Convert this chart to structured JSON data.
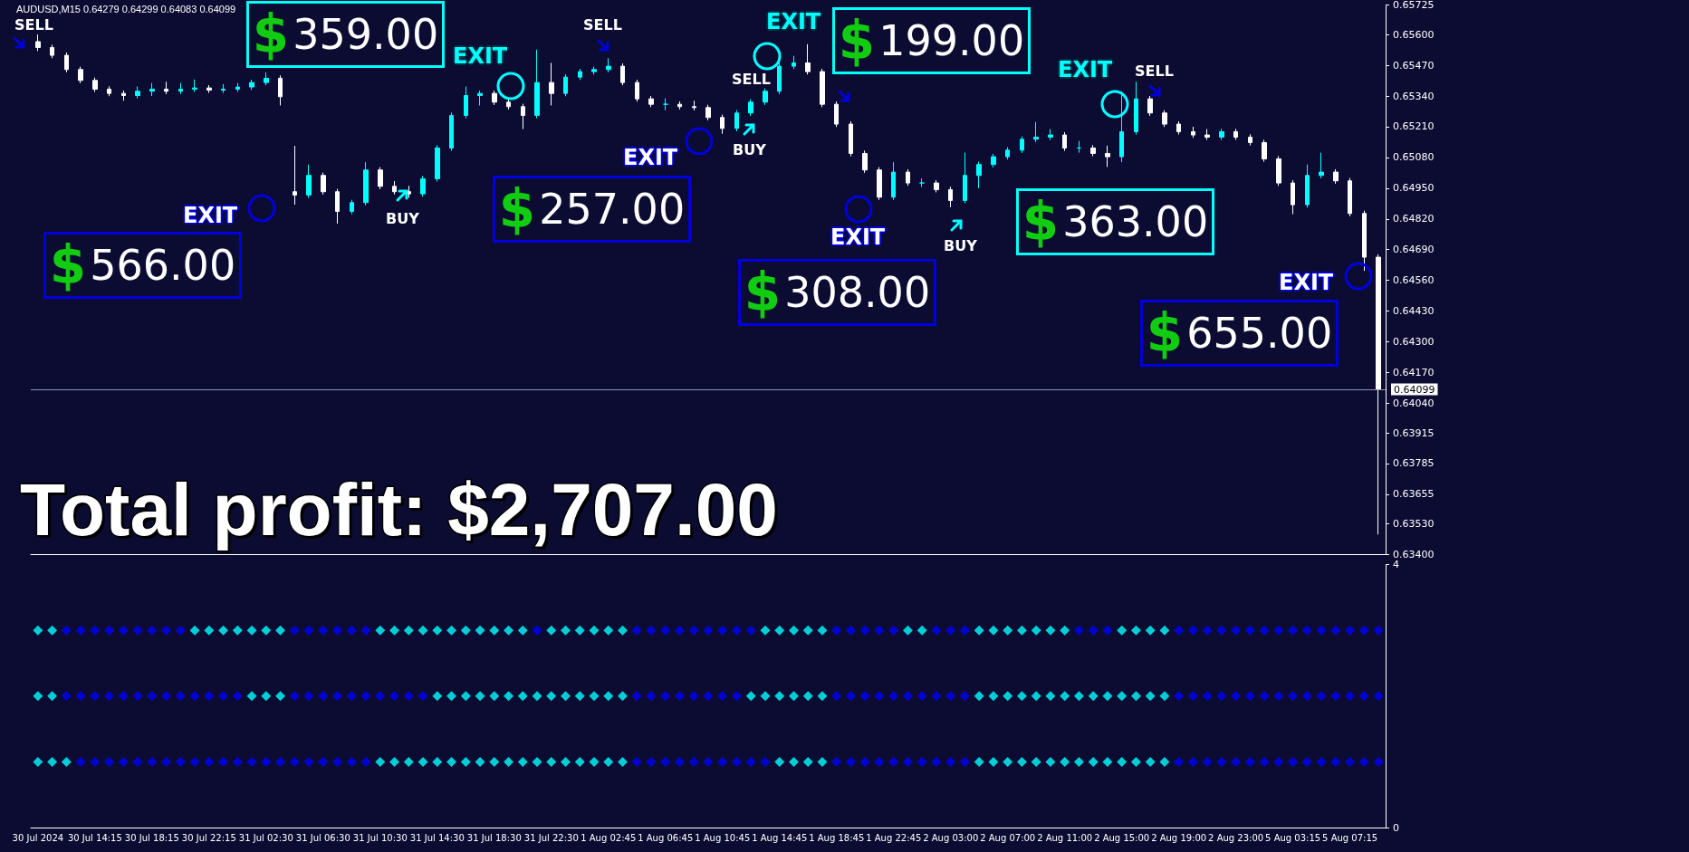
{
  "chart_data": [
    {
      "type": "candlestick",
      "tick_labels": "y",
      "categories": [
        null,
        null,
        null,
        null,
        null,
        null,
        null,
        null,
        null,
        null,
        null,
        null,
        null,
        null,
        null,
        null,
        null,
        null,
        null,
        null,
        null,
        null,
        null,
        null,
        null,
        null,
        null,
        null,
        null,
        null,
        null,
        null,
        null,
        null,
        null,
        null,
        null,
        null,
        null,
        null,
        null,
        null,
        null,
        null,
        null,
        null,
        null,
        null,
        null,
        null,
        null,
        null,
        null,
        null,
        null,
        null,
        null,
        null,
        null,
        null,
        null,
        null,
        null,
        null,
        null,
        null,
        null,
        null,
        null,
        null,
        null,
        null,
        null,
        null,
        null,
        null,
        null,
        null,
        null,
        null,
        null,
        null,
        null,
        null,
        null,
        null,
        null,
        null,
        null,
        null,
        null,
        null,
        null,
        null,
        null
      ],
      "ohlc": [
        [
          0.6557,
          0.656,
          0.6553,
          0.65545
        ],
        [
          0.65545,
          0.65557,
          0.655,
          0.65512
        ],
        [
          0.65512,
          0.65524,
          0.6544,
          0.65452
        ],
        [
          0.65452,
          0.65464,
          0.65394,
          0.65406
        ],
        [
          0.65406,
          0.65418,
          0.65357,
          0.65369
        ],
        [
          0.65369,
          0.65381,
          0.65339,
          0.65351
        ],
        [
          0.65351,
          0.65363,
          0.6532,
          0.65342
        ],
        [
          0.65342,
          0.6538,
          0.6533,
          0.6536
        ],
        [
          0.6536,
          0.65395,
          0.6534,
          0.65369
        ],
        [
          0.65369,
          0.654,
          0.65348,
          0.6536
        ],
        [
          0.6536,
          0.65395,
          0.65348,
          0.65369
        ],
        [
          0.65369,
          0.6541,
          0.65357,
          0.65374
        ],
        [
          0.65374,
          0.65386,
          0.65353,
          0.65365
        ],
        [
          0.65365,
          0.6539,
          0.65353,
          0.65369
        ],
        [
          0.65369,
          0.65395,
          0.65357,
          0.65378
        ],
        [
          0.65378,
          0.65409,
          0.65366,
          0.65397
        ],
        [
          0.65397,
          0.6544,
          0.65385,
          0.65415
        ],
        [
          0.65415,
          0.65427,
          0.653,
          0.65337
        ],
        [
          0.64935,
          0.65129,
          0.6488,
          0.64921
        ],
        [
          0.64921,
          0.6505,
          0.64909,
          0.65004
        ],
        [
          0.65004,
          0.65016,
          0.64923,
          0.64935
        ],
        [
          0.64935,
          0.64947,
          0.648,
          0.64852
        ],
        [
          0.64852,
          0.64901,
          0.6484,
          0.64889
        ],
        [
          0.64889,
          0.6506,
          0.64877,
          0.65027
        ],
        [
          0.65027,
          0.65039,
          0.64946,
          0.64958
        ],
        [
          0.64958,
          0.6498,
          0.64923,
          0.64935
        ],
        [
          0.64935,
          0.6496,
          0.6491,
          0.64926
        ],
        [
          0.64926,
          0.65002,
          0.64914,
          0.6499
        ],
        [
          0.6499,
          0.65132,
          0.64978,
          0.6512
        ],
        [
          0.6512,
          0.6527,
          0.65108,
          0.65258
        ],
        [
          0.65258,
          0.6538,
          0.65246,
          0.65342
        ],
        [
          0.65342,
          0.65363,
          0.653,
          0.65351
        ],
        [
          0.65351,
          0.65363,
          0.65302,
          0.65314
        ],
        [
          0.65314,
          0.65326,
          0.65283,
          0.65295
        ],
        [
          0.65295,
          0.65307,
          0.652,
          0.65258
        ],
        [
          0.65258,
          0.65536,
          0.65246,
          0.65397
        ],
        [
          0.65397,
          0.6548,
          0.653,
          0.65351
        ],
        [
          0.65351,
          0.65432,
          0.65339,
          0.6542
        ],
        [
          0.6542,
          0.65455,
          0.65408,
          0.65443
        ],
        [
          0.65443,
          0.65464,
          0.65431,
          0.65452
        ],
        [
          0.65452,
          0.655,
          0.6544,
          0.65466
        ],
        [
          0.65466,
          0.65478,
          0.65385,
          0.65397
        ],
        [
          0.65397,
          0.65409,
          0.65316,
          0.65328
        ],
        [
          0.65328,
          0.6534,
          0.65293,
          0.65305
        ],
        [
          0.65305,
          0.6533,
          0.6528,
          0.65305
        ],
        [
          0.65305,
          0.65317,
          0.65283,
          0.65295
        ],
        [
          0.65295,
          0.6532,
          0.65279,
          0.65291
        ],
        [
          0.65291,
          0.65303,
          0.65237,
          0.65249
        ],
        [
          0.65249,
          0.65261,
          0.6518,
          0.65203
        ],
        [
          0.65203,
          0.6528,
          0.65191,
          0.65268
        ],
        [
          0.65268,
          0.65326,
          0.65256,
          0.65314
        ],
        [
          0.65314,
          0.65372,
          0.65302,
          0.6536
        ],
        [
          0.6536,
          0.655,
          0.65348,
          0.65466
        ],
        [
          0.65466,
          0.6551,
          0.65454,
          0.6548
        ],
        [
          0.6548,
          0.65559,
          0.65431,
          0.65443
        ],
        [
          0.65443,
          0.65455,
          0.65293,
          0.65305
        ],
        [
          0.65305,
          0.65317,
          0.65209,
          0.65221
        ],
        [
          0.65221,
          0.65233,
          0.65085,
          0.65097
        ],
        [
          0.65097,
          0.65109,
          0.65015,
          0.65027
        ],
        [
          0.65027,
          0.65039,
          0.649,
          0.64912
        ],
        [
          0.64912,
          0.6506,
          0.649,
          0.65018
        ],
        [
          0.65018,
          0.6503,
          0.6496,
          0.64972
        ],
        [
          0.64972,
          0.6499,
          0.64955,
          0.64972
        ],
        [
          0.64972,
          0.64984,
          0.64932,
          0.64944
        ],
        [
          0.64944,
          0.64956,
          0.6487,
          0.64898
        ],
        [
          0.64898,
          0.651,
          0.64886,
          0.65004
        ],
        [
          0.65004,
          0.65062,
          0.6495,
          0.6505
        ],
        [
          0.6505,
          0.65095,
          0.65038,
          0.65083
        ],
        [
          0.65083,
          0.65123,
          0.65071,
          0.65111
        ],
        [
          0.65111,
          0.65169,
          0.65099,
          0.65157
        ],
        [
          0.65157,
          0.6523,
          0.65145,
          0.65166
        ],
        [
          0.65166,
          0.652,
          0.65154,
          0.65175
        ],
        [
          0.65175,
          0.65187,
          0.65108,
          0.6512
        ],
        [
          0.6512,
          0.6515,
          0.651,
          0.6512
        ],
        [
          0.6512,
          0.65132,
          0.65085,
          0.65097
        ],
        [
          0.65097,
          0.6513,
          0.6504,
          0.65083
        ],
        [
          0.65083,
          0.6536,
          0.6506,
          0.65189
        ],
        [
          0.65189,
          0.654,
          0.65177,
          0.65328
        ],
        [
          0.65328,
          0.6534,
          0.65256,
          0.65268
        ],
        [
          0.65268,
          0.6528,
          0.65209,
          0.65221
        ],
        [
          0.65221,
          0.65233,
          0.65177,
          0.65189
        ],
        [
          0.65189,
          0.6521,
          0.65163,
          0.65175
        ],
        [
          0.65175,
          0.652,
          0.65154,
          0.65166
        ],
        [
          0.65166,
          0.65201,
          0.65154,
          0.65189
        ],
        [
          0.65189,
          0.65201,
          0.65154,
          0.65166
        ],
        [
          0.65166,
          0.65178,
          0.65131,
          0.65143
        ],
        [
          0.65143,
          0.65155,
          0.65062,
          0.65074
        ],
        [
          0.65074,
          0.65086,
          0.6496,
          0.64972
        ],
        [
          0.64972,
          0.64984,
          0.6484,
          0.6488
        ],
        [
          0.6488,
          0.6505,
          0.64868,
          0.65004
        ],
        [
          0.65004,
          0.651,
          0.64992,
          0.65018
        ],
        [
          0.65018,
          0.6503,
          0.64969,
          0.64981
        ],
        [
          0.64981,
          0.64993,
          0.64831,
          0.64843
        ],
        [
          0.64843,
          0.64855,
          0.646,
          0.64658
        ],
        [
          0.64658,
          0.6467,
          0.63485,
          0.64099
        ]
      ],
      "ylim": [
        0.634,
        0.65725
      ],
      "yticks": [
        {
          "value": 0.634,
          "label": "0.63400"
        },
        {
          "value": 0.6353,
          "label": "0.63530"
        },
        {
          "value": 0.63655,
          "label": "0.63655"
        },
        {
          "value": 0.63785,
          "label": "0.63785"
        },
        {
          "value": 0.63915,
          "label": "0.63915"
        },
        {
          "value": 0.6404,
          "label": "0.64040"
        },
        {
          "value": 0.6417,
          "label": "0.64170"
        },
        {
          "value": 0.643,
          "label": "0.64300"
        },
        {
          "value": 0.6443,
          "label": "0.64430"
        },
        {
          "value": 0.6456,
          "label": "0.64560"
        },
        {
          "value": 0.6469,
          "label": "0.64690"
        },
        {
          "value": 0.6482,
          "label": "0.64820"
        },
        {
          "value": 0.6495,
          "label": "0.64950"
        },
        {
          "value": 0.6508,
          "label": "0.65080"
        },
        {
          "value": 0.6521,
          "label": "0.65210"
        },
        {
          "value": 0.6534,
          "label": "0.65340"
        },
        {
          "value": 0.6547,
          "label": "0.65470"
        },
        {
          "value": 0.656,
          "label": "0.65600"
        },
        {
          "value": 0.65725,
          "label": "0.65725"
        }
      ],
      "ref_lines": [
        {
          "axis": "y",
          "value": 0.64099,
          "label": "0.64099",
          "color": "#8a98a8"
        }
      ],
      "annotations": [
        "AUDUSD,M15  0.64279 0.64299 0.64083 0.64099",
        "SELL",
        "SELL",
        "SELL",
        "SELL",
        "BUY",
        "BUY",
        "BUY",
        "EXIT",
        "EXIT",
        "EXIT",
        "EXIT",
        "EXIT",
        "EXIT",
        "EXIT",
        "$566.00",
        "$359.00",
        "$257.00",
        "$308.00",
        "$199.00",
        "$363.00",
        "$655.00",
        "Total profit: $2,707.00"
      ]
    },
    {
      "type": "scatter",
      "marker": "diamond",
      "ylim": [
        0,
        4
      ],
      "yticks": [
        0,
        4
      ],
      "categories": [
        "30 Jul 2024",
        null,
        null,
        null,
        "30 Jul 14:15",
        null,
        null,
        null,
        "30 Jul 18:15",
        null,
        null,
        null,
        "30 Jul 22:15",
        null,
        null,
        null,
        "31 Jul 02:30",
        null,
        null,
        null,
        "31 Jul 06:30",
        null,
        null,
        null,
        "31 Jul 10:30",
        null,
        null,
        null,
        "31 Jul 14:30",
        null,
        null,
        null,
        "31 Jul 18:30",
        null,
        null,
        null,
        "31 Jul 22:30",
        null,
        null,
        null,
        "1 Aug 02:45",
        null,
        null,
        null,
        "1 Aug 06:45",
        null,
        null,
        null,
        "1 Aug 10:45",
        null,
        null,
        null,
        "1 Aug 14:45",
        null,
        null,
        null,
        "1 Aug 18:45",
        null,
        null,
        null,
        "1 Aug 22:45",
        null,
        null,
        null,
        "2 Aug 03:00",
        null,
        null,
        null,
        "2 Aug 07:00",
        null,
        null,
        null,
        "2 Aug 11:00",
        null,
        null,
        null,
        "2 Aug 15:00",
        null,
        null,
        null,
        "2 Aug 19:00",
        null,
        null,
        null,
        "2 Aug 23:00",
        null,
        null,
        null,
        "5 Aug 03:15",
        null,
        null,
        null,
        "5 Aug 07:15",
        null,
        null
      ],
      "series": [
        {
          "values": [
            3,
            3,
            3,
            3,
            3,
            3,
            3,
            3,
            3,
            3,
            3,
            3,
            3,
            3,
            3,
            3,
            3,
            3,
            3,
            3,
            3,
            3,
            3,
            3,
            3,
            3,
            3,
            3,
            3,
            3,
            3,
            3,
            3,
            3,
            3,
            3,
            3,
            3,
            3,
            3,
            3,
            3,
            3,
            3,
            3,
            3,
            3,
            3,
            3,
            3,
            3,
            3,
            3,
            3,
            3,
            3,
            3,
            3,
            3,
            3,
            3,
            3,
            3,
            3,
            3,
            3,
            3,
            3,
            3,
            3,
            3,
            3,
            3,
            3,
            3,
            3,
            3,
            3,
            3,
            3,
            3,
            3,
            3,
            3,
            3,
            3,
            3,
            3,
            3,
            3,
            3,
            3,
            3,
            3,
            3
          ],
          "colors": [
            "#00ffff",
            "#00ffff",
            "#0000ff",
            "#0000ff",
            "#0000ff",
            "#0000ff",
            "#0000ff",
            "#0000ff",
            "#0000ff",
            "#0000ff",
            "#0000ff",
            "#00ffff",
            "#00ffff",
            "#00ffff",
            "#00ffff",
            "#00ffff",
            "#00ffff",
            "#00ffff",
            "#0000ff",
            "#0000ff",
            "#0000ff",
            "#0000ff",
            "#0000ff",
            "#0000ff",
            "#00ffff",
            "#00ffff",
            "#00ffff",
            "#00ffff",
            "#00ffff",
            "#00ffff",
            "#00ffff",
            "#00ffff",
            "#00ffff",
            "#00ffff",
            "#00ffff",
            "#0000ff",
            "#00ffff",
            "#00ffff",
            "#00ffff",
            "#00ffff",
            "#00ffff",
            "#00ffff",
            "#0000ff",
            "#0000ff",
            "#0000ff",
            "#0000ff",
            "#0000ff",
            "#0000ff",
            "#0000ff",
            "#0000ff",
            "#0000ff",
            "#00ffff",
            "#00ffff",
            "#00ffff",
            "#00ffff",
            "#00ffff",
            "#0000ff",
            "#0000ff",
            "#0000ff",
            "#0000ff",
            "#0000ff",
            "#00ffff",
            "#00ffff",
            "#0000ff",
            "#0000ff",
            "#0000ff",
            "#00ffff",
            "#00ffff",
            "#00ffff",
            "#00ffff",
            "#00ffff",
            "#00ffff",
            "#00ffff",
            "#0000ff",
            "#0000ff",
            "#0000ff",
            "#00ffff",
            "#00ffff",
            "#00ffff",
            "#00ffff",
            "#0000ff",
            "#0000ff",
            "#0000ff",
            "#0000ff",
            "#0000ff",
            "#0000ff",
            "#0000ff",
            "#0000ff",
            "#0000ff",
            "#0000ff",
            "#0000ff",
            "#0000ff",
            "#0000ff",
            "#0000ff",
            "#0000ff"
          ]
        },
        {
          "values": [
            2,
            2,
            2,
            2,
            2,
            2,
            2,
            2,
            2,
            2,
            2,
            2,
            2,
            2,
            2,
            2,
            2,
            2,
            2,
            2,
            2,
            2,
            2,
            2,
            2,
            2,
            2,
            2,
            2,
            2,
            2,
            2,
            2,
            2,
            2,
            2,
            2,
            2,
            2,
            2,
            2,
            2,
            2,
            2,
            2,
            2,
            2,
            2,
            2,
            2,
            2,
            2,
            2,
            2,
            2,
            2,
            2,
            2,
            2,
            2,
            2,
            2,
            2,
            2,
            2,
            2,
            2,
            2,
            2,
            2,
            2,
            2,
            2,
            2,
            2,
            2,
            2,
            2,
            2,
            2,
            2,
            2,
            2,
            2,
            2,
            2,
            2,
            2,
            2,
            2,
            2,
            2,
            2,
            2,
            2
          ],
          "colors": [
            "#00ffff",
            "#00ffff",
            "#0000ff",
            "#0000ff",
            "#0000ff",
            "#0000ff",
            "#0000ff",
            "#0000ff",
            "#0000ff",
            "#0000ff",
            "#0000ff",
            "#0000ff",
            "#0000ff",
            "#0000ff",
            "#0000ff",
            "#00ffff",
            "#00ffff",
            "#00ffff",
            "#0000ff",
            "#0000ff",
            "#0000ff",
            "#0000ff",
            "#0000ff",
            "#0000ff",
            "#0000ff",
            "#0000ff",
            "#0000ff",
            "#0000ff",
            "#00ffff",
            "#00ffff",
            "#00ffff",
            "#00ffff",
            "#00ffff",
            "#00ffff",
            "#00ffff",
            "#00ffff",
            "#00ffff",
            "#00ffff",
            "#00ffff",
            "#00ffff",
            "#00ffff",
            "#00ffff",
            "#0000ff",
            "#0000ff",
            "#0000ff",
            "#0000ff",
            "#0000ff",
            "#0000ff",
            "#0000ff",
            "#0000ff",
            "#00ffff",
            "#00ffff",
            "#00ffff",
            "#00ffff",
            "#00ffff",
            "#00ffff",
            "#0000ff",
            "#0000ff",
            "#0000ff",
            "#0000ff",
            "#0000ff",
            "#0000ff",
            "#0000ff",
            "#0000ff",
            "#0000ff",
            "#0000ff",
            "#00ffff",
            "#00ffff",
            "#00ffff",
            "#00ffff",
            "#00ffff",
            "#00ffff",
            "#00ffff",
            "#00ffff",
            "#00ffff",
            "#00ffff",
            "#00ffff",
            "#00ffff",
            "#00ffff",
            "#00ffff",
            "#0000ff",
            "#0000ff",
            "#0000ff",
            "#0000ff",
            "#0000ff",
            "#0000ff",
            "#0000ff",
            "#0000ff",
            "#0000ff",
            "#0000ff",
            "#0000ff",
            "#0000ff",
            "#0000ff",
            "#0000ff",
            "#0000ff"
          ]
        },
        {
          "values": [
            1,
            1,
            1,
            1,
            1,
            1,
            1,
            1,
            1,
            1,
            1,
            1,
            1,
            1,
            1,
            1,
            1,
            1,
            1,
            1,
            1,
            1,
            1,
            1,
            1,
            1,
            1,
            1,
            1,
            1,
            1,
            1,
            1,
            1,
            1,
            1,
            1,
            1,
            1,
            1,
            1,
            1,
            1,
            1,
            1,
            1,
            1,
            1,
            1,
            1,
            1,
            1,
            1,
            1,
            1,
            1,
            1,
            1,
            1,
            1,
            1,
            1,
            1,
            1,
            1,
            1,
            1,
            1,
            1,
            1,
            1,
            1,
            1,
            1,
            1,
            1,
            1,
            1,
            1,
            1,
            1,
            1,
            1,
            1,
            1,
            1,
            1,
            1,
            1,
            1,
            1,
            1,
            1,
            1,
            1
          ],
          "colors": [
            "#00ffff",
            "#00ffff",
            "#00ffff",
            "#0000ff",
            "#0000ff",
            "#0000ff",
            "#0000ff",
            "#0000ff",
            "#0000ff",
            "#0000ff",
            "#0000ff",
            "#0000ff",
            "#0000ff",
            "#0000ff",
            "#0000ff",
            "#0000ff",
            "#0000ff",
            "#0000ff",
            "#0000ff",
            "#0000ff",
            "#0000ff",
            "#0000ff",
            "#0000ff",
            "#0000ff",
            "#00ffff",
            "#00ffff",
            "#00ffff",
            "#00ffff",
            "#00ffff",
            "#00ffff",
            "#00ffff",
            "#00ffff",
            "#00ffff",
            "#00ffff",
            "#00ffff",
            "#00ffff",
            "#00ffff",
            "#00ffff",
            "#00ffff",
            "#00ffff",
            "#00ffff",
            "#00ffff",
            "#0000ff",
            "#0000ff",
            "#0000ff",
            "#0000ff",
            "#0000ff",
            "#0000ff",
            "#0000ff",
            "#0000ff",
            "#0000ff",
            "#0000ff",
            "#00ffff",
            "#00ffff",
            "#00ffff",
            "#00ffff",
            "#0000ff",
            "#0000ff",
            "#0000ff",
            "#0000ff",
            "#0000ff",
            "#0000ff",
            "#0000ff",
            "#0000ff",
            "#0000ff",
            "#0000ff",
            "#00ffff",
            "#00ffff",
            "#00ffff",
            "#00ffff",
            "#00ffff",
            "#00ffff",
            "#00ffff",
            "#00ffff",
            "#00ffff",
            "#00ffff",
            "#00ffff",
            "#00ffff",
            "#00ffff",
            "#00ffff",
            "#0000ff",
            "#0000ff",
            "#0000ff",
            "#0000ff",
            "#0000ff",
            "#0000ff",
            "#0000ff",
            "#0000ff",
            "#0000ff",
            "#0000ff",
            "#0000ff",
            "#0000ff",
            "#0000ff",
            "#0000ff",
            "#0000ff"
          ]
        }
      ]
    }
  ]
}
